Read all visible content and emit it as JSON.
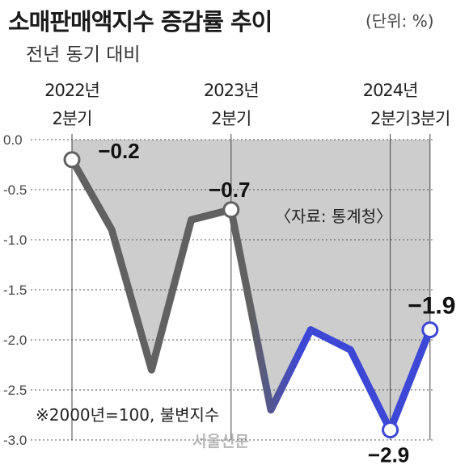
{
  "header": {
    "title": "소매판매액지수 증감률 추이",
    "unit": "(단위: %)",
    "subtitle": "전년 동기 대비"
  },
  "colors": {
    "area": "#cdcdcd",
    "line_gray": "#616161",
    "line_blue": "#3d47d6",
    "marker_fill": "#ffffff"
  },
  "chart_data": {
    "type": "line",
    "y_ticks": [
      "0.0",
      "-0.5",
      "-1.0",
      "-1.5",
      "-2.0",
      "-2.5",
      "-3.0"
    ],
    "ylim": [
      -3.0,
      0.0
    ],
    "grid": "horizontal dotted",
    "x_labels": [
      {
        "index": 0,
        "line1": "2022년",
        "line2": "2분기"
      },
      {
        "index": 4,
        "line1": "2023년",
        "line2": "2분기"
      },
      {
        "index": 8,
        "line1": "2024년",
        "line2": "2분기"
      },
      {
        "index": 9,
        "line1": "",
        "line2": "3분기"
      }
    ],
    "values": [
      -0.2,
      -0.9,
      -2.3,
      -0.8,
      -0.7,
      -2.7,
      -1.9,
      -2.1,
      -2.9,
      -1.9
    ],
    "marked_points": [
      0,
      4,
      8,
      9
    ],
    "data_labels": [
      {
        "index": 0,
        "text": "−0.2"
      },
      {
        "index": 4,
        "text": "−0.7"
      },
      {
        "index": 8,
        "text": "−2.9"
      },
      {
        "index": 9,
        "text": "−1.9"
      }
    ],
    "source": "〈자료: 통계청〉",
    "note": "※2000년=100, 불변지수"
  },
  "watermark": "서울신문"
}
